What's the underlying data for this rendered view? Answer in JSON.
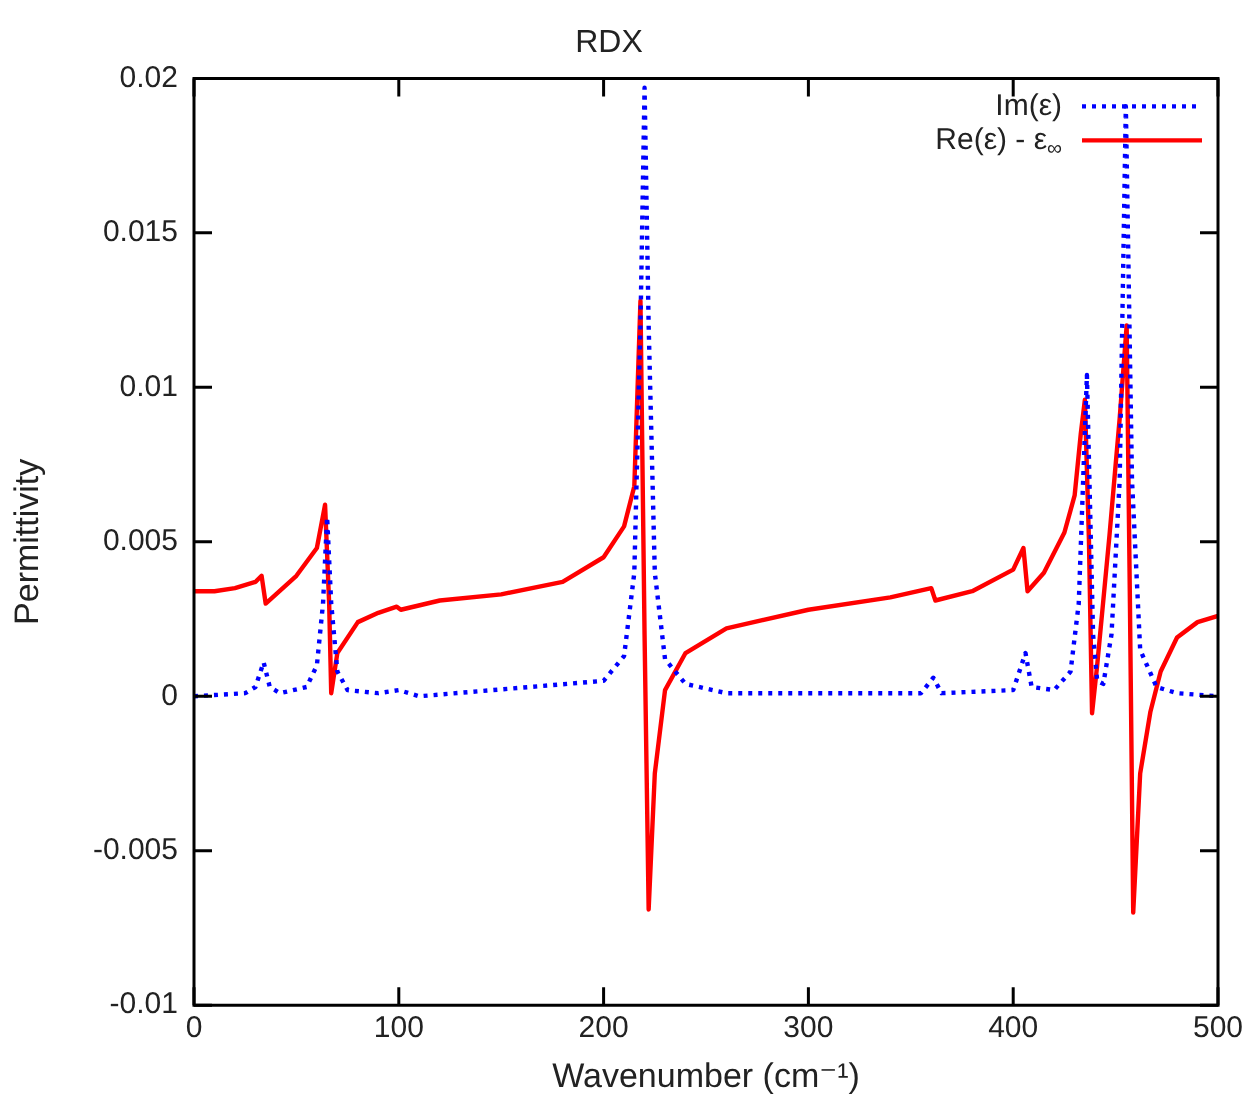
{
  "chart_data": {
    "type": "line",
    "title": "RDX",
    "xlabel": "Wavenumber (cm⁻¹)",
    "ylabel": "Permittivity",
    "xlim": [
      0,
      500
    ],
    "xticks": [
      0,
      100,
      200,
      300,
      400,
      500
    ],
    "ylim": [
      -0.01,
      0.02
    ],
    "yticks": [
      -0.01,
      -0.005,
      0,
      0.005,
      0.01,
      0.015,
      0.02
    ],
    "grid": false,
    "legend": "top right",
    "marker": "none",
    "series": [
      {
        "name": "Im(ε)",
        "color": "#0000ff",
        "line_style": "dotted",
        "x": [
          0,
          25,
          30,
          34,
          37,
          42,
          55,
          60,
          63,
          65,
          67,
          70,
          75,
          90,
          100,
          110,
          200,
          210,
          215,
          218,
          220,
          222,
          225,
          230,
          240,
          260,
          355,
          361,
          365,
          400,
          406,
          409,
          420,
          428,
          432,
          436,
          439,
          441,
          444,
          448,
          452,
          455,
          458,
          462,
          470,
          480,
          500
        ],
        "values": [
          0,
          0.0001,
          0.0003,
          0.0011,
          0.0003,
          0.0001,
          0.0003,
          0.001,
          0.003,
          0.0058,
          0.003,
          0.0008,
          0.0002,
          0.0001,
          0.0002,
          0,
          0.0005,
          0.0013,
          0.004,
          0.012,
          0.0197,
          0.012,
          0.004,
          0.0012,
          0.0004,
          0.0001,
          0.0001,
          0.0006,
          0.0001,
          0.0002,
          0.0014,
          0.0003,
          0.0002,
          0.0008,
          0.003,
          0.0104,
          0.002,
          0.0005,
          0.0004,
          0.002,
          0.007,
          0.0191,
          0.007,
          0.0015,
          0.0003,
          0.0001,
          0
        ]
      },
      {
        "name": "Re(ε) - ε$_{∞}$",
        "color": "#ff0000",
        "line_style": "solid",
        "x": [
          0,
          10,
          20,
          30,
          33,
          35,
          40,
          50,
          60,
          64,
          66,
          67,
          70,
          80,
          90,
          99,
          101,
          120,
          150,
          180,
          200,
          210,
          215,
          218,
          220,
          222,
          225,
          230,
          240,
          260,
          300,
          340,
          360,
          362,
          380,
          400,
          405,
          407,
          415,
          425,
          430,
          433,
          435,
          437,
          438.5,
          441,
          447,
          452,
          455.4,
          457,
          458.6,
          462,
          467,
          472,
          480,
          490,
          500
        ],
        "values": [
          0.0034,
          0.0034,
          0.0035,
          0.0037,
          0.0039,
          0.003,
          0.0033,
          0.0039,
          0.0048,
          0.0062,
          0.003,
          0.0001,
          0.0014,
          0.0024,
          0.0027,
          0.0029,
          0.0028,
          0.0031,
          0.0033,
          0.0037,
          0.0045,
          0.0055,
          0.0068,
          0.0128,
          0.002,
          -0.0069,
          -0.0025,
          0.0002,
          0.0014,
          0.0022,
          0.0028,
          0.0032,
          0.0035,
          0.0031,
          0.0034,
          0.0041,
          0.0048,
          0.0034,
          0.004,
          0.0053,
          0.0065,
          0.0085,
          0.0096,
          0.005,
          -0.00055,
          0.001,
          0.0052,
          0.009,
          0.012,
          0.003,
          -0.007,
          -0.0025,
          -0.0005,
          0.0008,
          0.0019,
          0.0024,
          0.0026
        ]
      }
    ]
  }
}
